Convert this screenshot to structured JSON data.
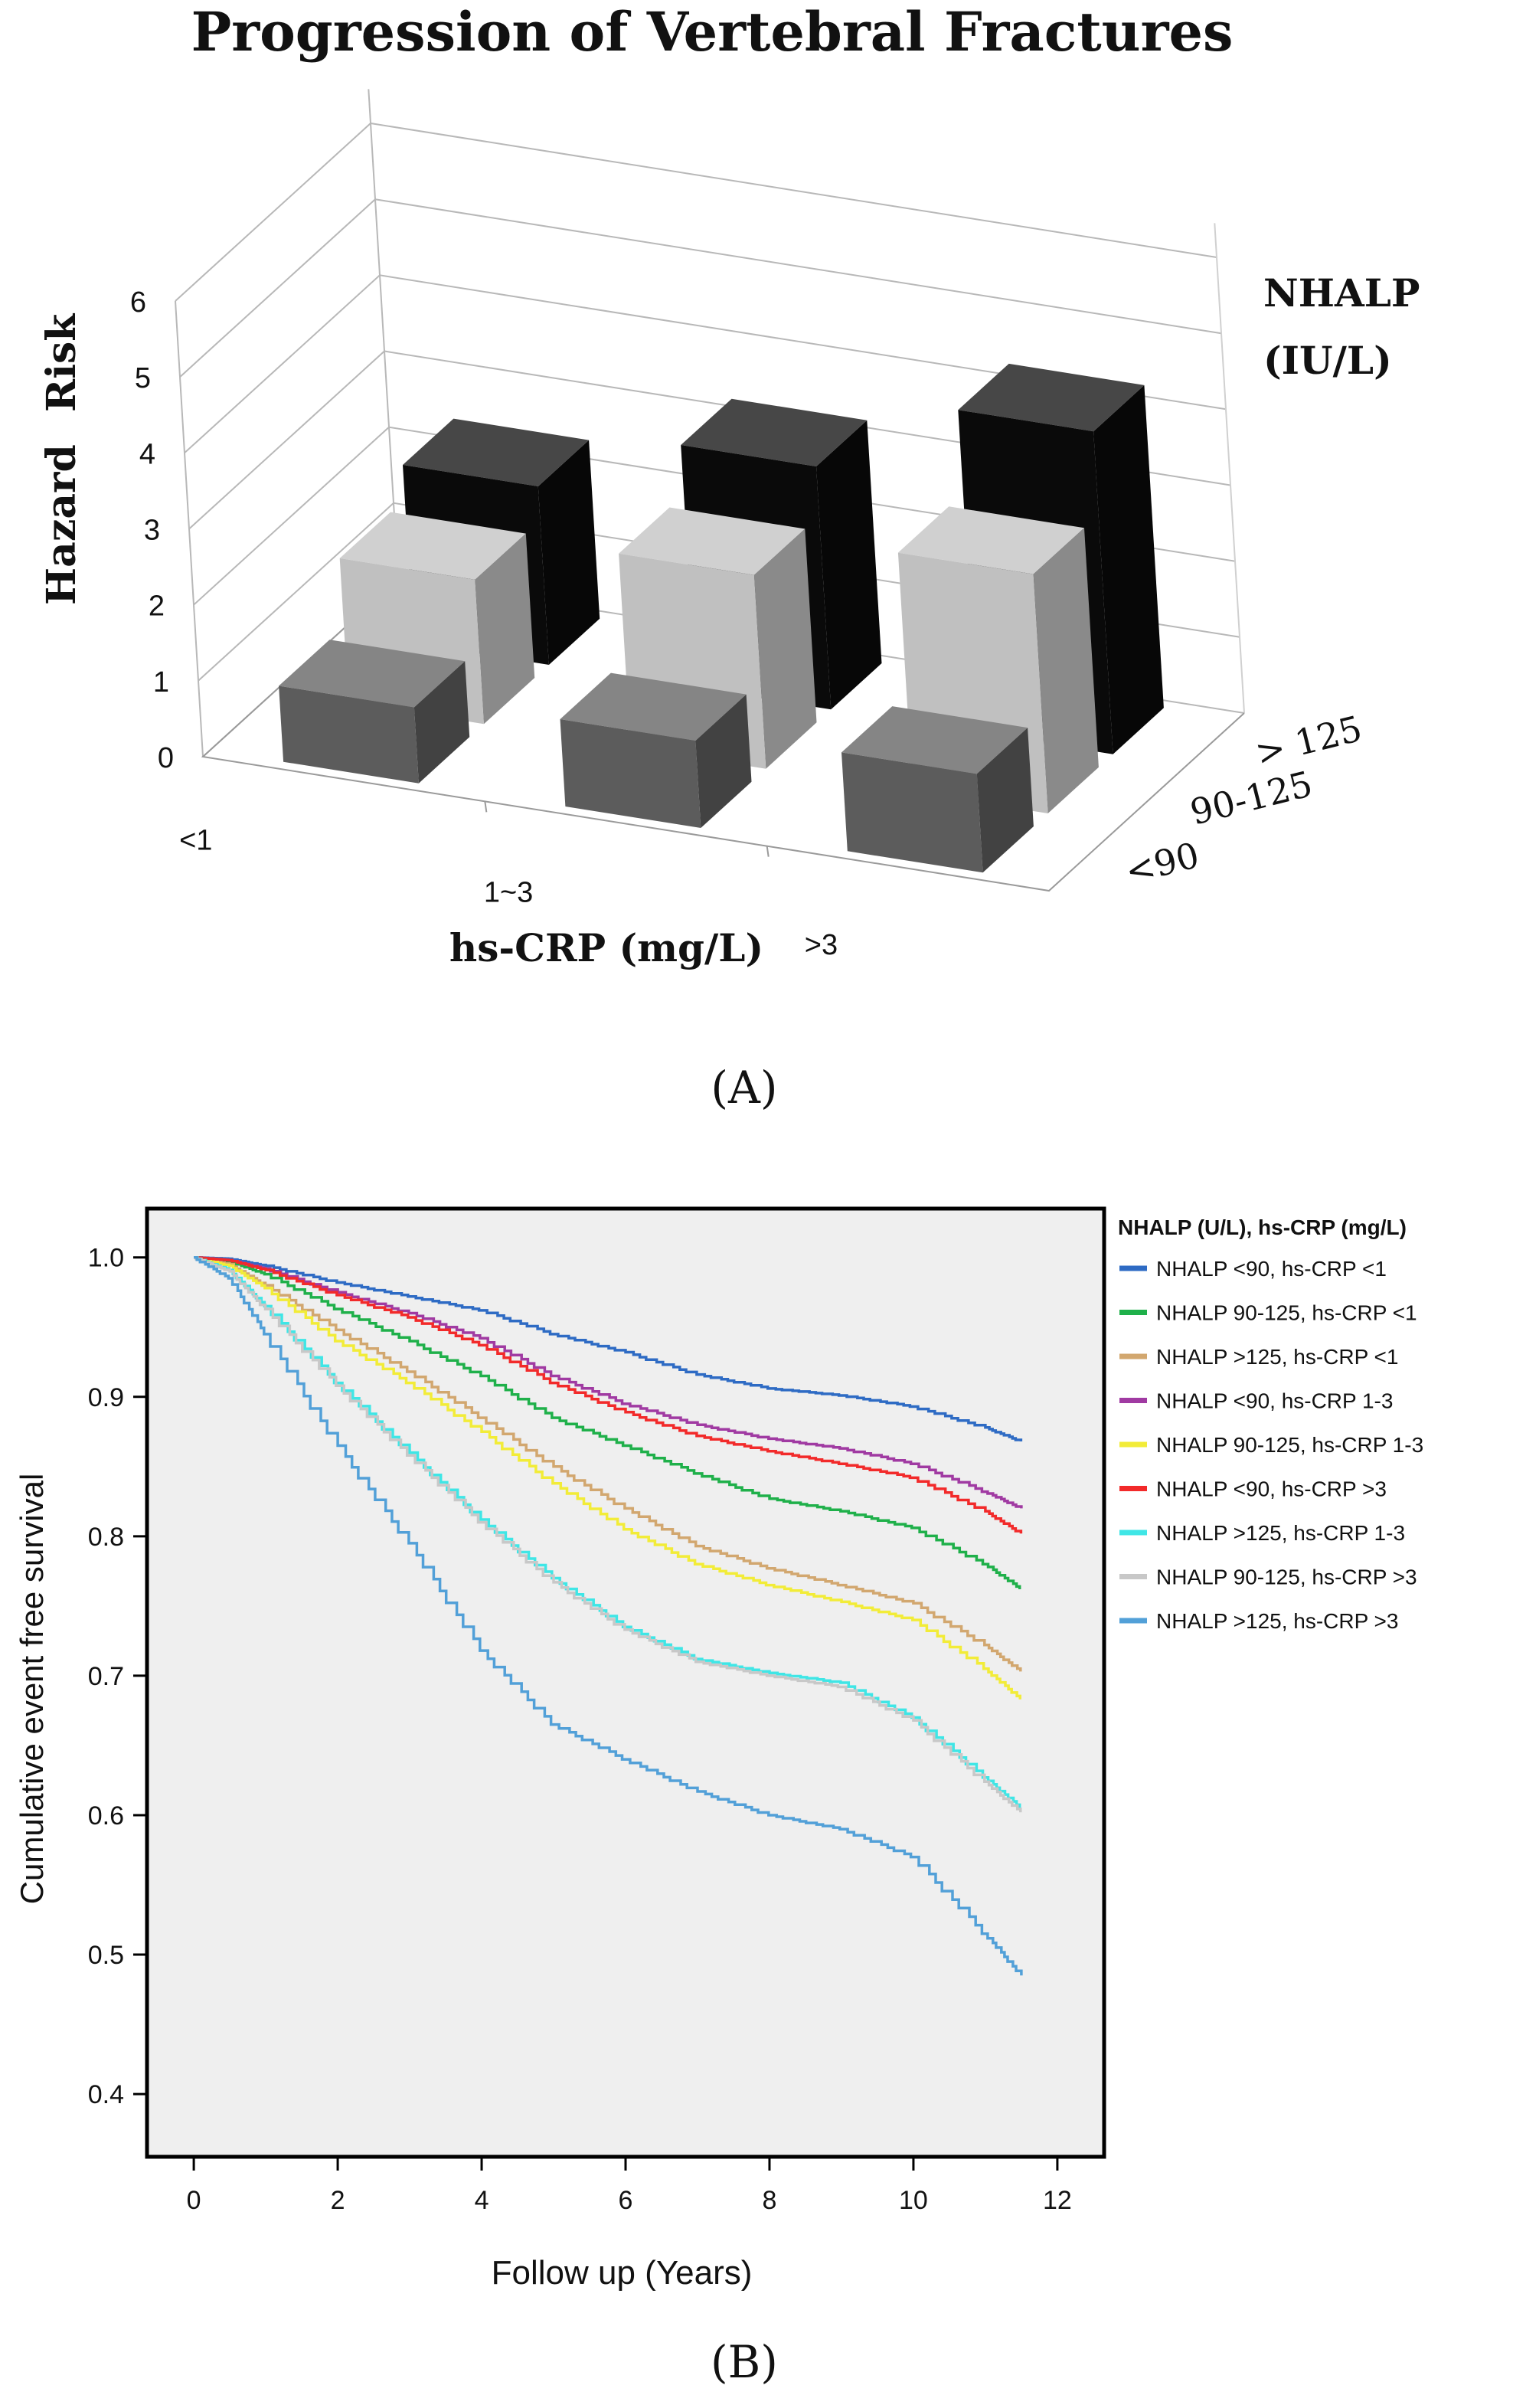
{
  "chart_data": [
    {
      "type": "bar",
      "panel_label": "A",
      "panel_label_text": "(A)",
      "title": "Progression of Vertebral Fractures",
      "ylabel": "Hazard    Risk",
      "ylabel_words": [
        "Hazard",
        "Risk"
      ],
      "xlabel": "hs-CRP (mg/L)",
      "zlabel": "NHALP (IU/L)",
      "zlabel_lines": [
        "NHALP",
        "(IU/L)"
      ],
      "y_ticks": [
        "0",
        "1",
        "2",
        "3",
        "4",
        "5",
        "6"
      ],
      "ylim": [
        0,
        6
      ],
      "categories": [
        "<1",
        "1~3",
        ">3"
      ],
      "series": [
        {
          "name": "<90",
          "color": "#5c5c5c",
          "values": [
            1,
            1.15,
            1.3
          ]
        },
        {
          "name": "90-125",
          "color": "#c0c0c0",
          "values": [
            1.9,
            2.55,
            3.15
          ]
        },
        {
          "name": "> 125",
          "color": "#0a0a0a",
          "values": [
            2.35,
            3.2,
            4.25
          ]
        }
      ]
    },
    {
      "type": "line",
      "panel_label": "B",
      "panel_label_text": "(B)",
      "xlabel": "Follow up (Years)",
      "ylabel": "Cumulative event free survival",
      "xlim": [
        -0.65,
        12.65
      ],
      "ylim": [
        0.355,
        1.035
      ],
      "x_ticks": [
        "0",
        "2",
        "4",
        "6",
        "8",
        "10",
        "12"
      ],
      "y_ticks": [
        "0.4",
        "0.5",
        "0.6",
        "0.7",
        "0.8",
        "0.9",
        "1.0"
      ],
      "legend_title": "NHALP (U/L), hs-CRP (mg/L)",
      "legend_position": "right",
      "plot_background": "#efefef",
      "series": [
        {
          "name": "NHALP <90, hs-CRP <1",
          "color": "#2e6bc4",
          "x": [
            0,
            0.5,
            1,
            2,
            3,
            4,
            5,
            6,
            7,
            8,
            9,
            10,
            11,
            11.5
          ],
          "y": [
            1,
            0.999,
            0.994,
            0.982,
            0.972,
            0.962,
            0.945,
            0.932,
            0.916,
            0.906,
            0.901,
            0.893,
            0.878,
            0.868
          ]
        },
        {
          "name": "NHALP 90-125, hs-CRP <1",
          "color": "#1fb04a",
          "x": [
            0,
            0.5,
            1,
            2,
            3,
            4,
            5,
            6,
            7,
            8,
            9,
            10,
            11,
            11.5
          ],
          "y": [
            1,
            0.997,
            0.988,
            0.963,
            0.94,
            0.915,
            0.885,
            0.865,
            0.845,
            0.827,
            0.818,
            0.806,
            0.78,
            0.762
          ]
        },
        {
          "name": "NHALP >125, hs-CRP <1",
          "color": "#d2a76f",
          "x": [
            0,
            0.5,
            1,
            2,
            3,
            4,
            5,
            6,
            7,
            8,
            9,
            10,
            11,
            11.5
          ],
          "y": [
            1,
            0.995,
            0.98,
            0.948,
            0.918,
            0.885,
            0.85,
            0.82,
            0.793,
            0.777,
            0.765,
            0.752,
            0.722,
            0.703
          ]
        },
        {
          "name": "NHALP <90, hs-CRP 1-3",
          "color": "#a03aa2",
          "x": [
            0,
            0.5,
            1,
            2,
            3,
            4,
            5,
            6,
            7,
            8,
            9,
            10,
            11,
            11.5
          ],
          "y": [
            1,
            0.998,
            0.992,
            0.975,
            0.96,
            0.942,
            0.915,
            0.895,
            0.88,
            0.87,
            0.863,
            0.852,
            0.832,
            0.82
          ]
        },
        {
          "name": "NHALP 90-125, hs-CRP 1-3",
          "color": "#f2ec38",
          "x": [
            0,
            0.5,
            1,
            2,
            3,
            4,
            5,
            6,
            7,
            8,
            9,
            10,
            11,
            11.5
          ],
          "y": [
            1,
            0.994,
            0.978,
            0.94,
            0.91,
            0.875,
            0.838,
            0.805,
            0.78,
            0.765,
            0.753,
            0.74,
            0.705,
            0.683
          ]
        },
        {
          "name": "NHALP <90, hs-CRP >3",
          "color": "#f22a2a",
          "x": [
            0,
            0.5,
            1,
            2,
            3,
            4,
            5,
            6,
            7,
            8,
            9,
            10,
            11,
            11.5
          ],
          "y": [
            1,
            0.998,
            0.991,
            0.973,
            0.957,
            0.937,
            0.91,
            0.889,
            0.872,
            0.861,
            0.852,
            0.842,
            0.818,
            0.802
          ]
        },
        {
          "name": "NHALP >125, hs-CRP 1-3",
          "color": "#3fe6e6",
          "x": [
            0,
            0.5,
            1,
            2,
            3,
            4,
            5,
            6,
            7,
            8,
            9,
            10,
            11,
            11.5
          ],
          "y": [
            1,
            0.991,
            0.965,
            0.91,
            0.86,
            0.812,
            0.77,
            0.735,
            0.712,
            0.702,
            0.695,
            0.67,
            0.627,
            0.605
          ]
        },
        {
          "name": "NHALP 90-125, hs-CRP >3",
          "color": "#c8c8c8",
          "x": [
            0,
            0.5,
            1,
            2,
            3,
            4,
            5,
            6,
            7,
            8,
            9,
            10,
            11,
            11.5
          ],
          "y": [
            1,
            0.99,
            0.963,
            0.908,
            0.858,
            0.81,
            0.767,
            0.733,
            0.71,
            0.7,
            0.692,
            0.668,
            0.624,
            0.602
          ]
        },
        {
          "name": "NHALP >125, hs-CRP >3",
          "color": "#52a0d8",
          "x": [
            0,
            0.5,
            1,
            2,
            3,
            4,
            5,
            6,
            7,
            8,
            9,
            10,
            11,
            11.5
          ],
          "y": [
            1,
            0.985,
            0.945,
            0.865,
            0.795,
            0.718,
            0.665,
            0.64,
            0.617,
            0.6,
            0.59,
            0.57,
            0.515,
            0.485
          ]
        }
      ]
    }
  ]
}
